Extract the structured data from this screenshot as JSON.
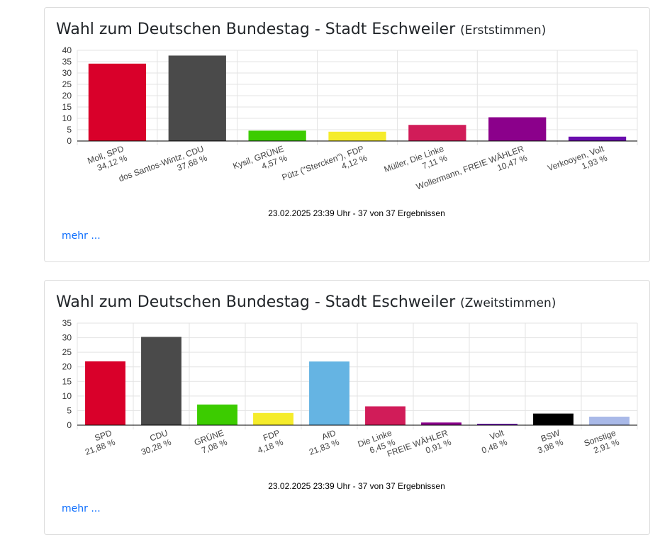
{
  "charts": [
    {
      "title_main": "Wahl zum Deutschen Bundestag - Stadt Eschweiler",
      "title_suffix": "(Erststimmen)",
      "footer": "23.02.2025 23:39 Uhr - 37 von 37 Ergebnissen",
      "more_label": "mehr ..."
    },
    {
      "title_main": "Wahl zum Deutschen Bundestag - Stadt Eschweiler",
      "title_suffix": "(Zweitstimmen)",
      "footer": "23.02.2025 23:39 Uhr - 37 von 37 Ergebnissen",
      "more_label": "mehr ..."
    }
  ],
  "chart_data": [
    {
      "type": "bar",
      "title": "Wahl zum Deutschen Bundestag - Stadt Eschweiler (Erststimmen)",
      "categories": [
        "Moll, SPD",
        "dos Santos-Wintz, CDU",
        "Kysil, GRÜNE",
        "Pütz (\"Stercken\"), FDP",
        "Müller, Die Linke",
        "Wollermann, FREIE WÄHLER",
        "Verkooyen, Volt"
      ],
      "value_labels": [
        "34,12 %",
        "37,68 %",
        "4,57 %",
        "4,12 %",
        "7,11 %",
        "10,47 %",
        "1,93 %"
      ],
      "values": [
        34.12,
        37.68,
        4.57,
        4.12,
        7.11,
        10.47,
        1.93
      ],
      "colors": [
        "#d9002a",
        "#4a4a4a",
        "#3ccc00",
        "#f5ec2b",
        "#d11c59",
        "#8b008b",
        "#6a0dad"
      ],
      "ylim": [
        0,
        40
      ],
      "yticks": [
        0,
        5,
        10,
        15,
        20,
        25,
        30,
        35,
        40
      ],
      "grid": true
    },
    {
      "type": "bar",
      "title": "Wahl zum Deutschen Bundestag - Stadt Eschweiler (Zweitstimmen)",
      "categories": [
        "SPD",
        "CDU",
        "GRÜNE",
        "FDP",
        "AfD",
        "Die Linke",
        "FREIE WÄHLER",
        "Volt",
        "BSW",
        "Sonstige"
      ],
      "value_labels": [
        "21,88 %",
        "30,28 %",
        "7,08 %",
        "4,18 %",
        "21,83 %",
        "6,45 %",
        "0,91 %",
        "0,48 %",
        "3,98 %",
        "2,91 %"
      ],
      "values": [
        21.88,
        30.28,
        7.08,
        4.18,
        21.83,
        6.45,
        0.91,
        0.48,
        3.98,
        2.91
      ],
      "colors": [
        "#d9002a",
        "#4a4a4a",
        "#3ccc00",
        "#f5ec2b",
        "#65b4e3",
        "#d11c59",
        "#8b008b",
        "#6a0dad",
        "#000000",
        "#a9b9e8"
      ],
      "ylim": [
        0,
        35
      ],
      "yticks": [
        0,
        5,
        10,
        15,
        20,
        25,
        30,
        35
      ],
      "grid": true
    }
  ]
}
